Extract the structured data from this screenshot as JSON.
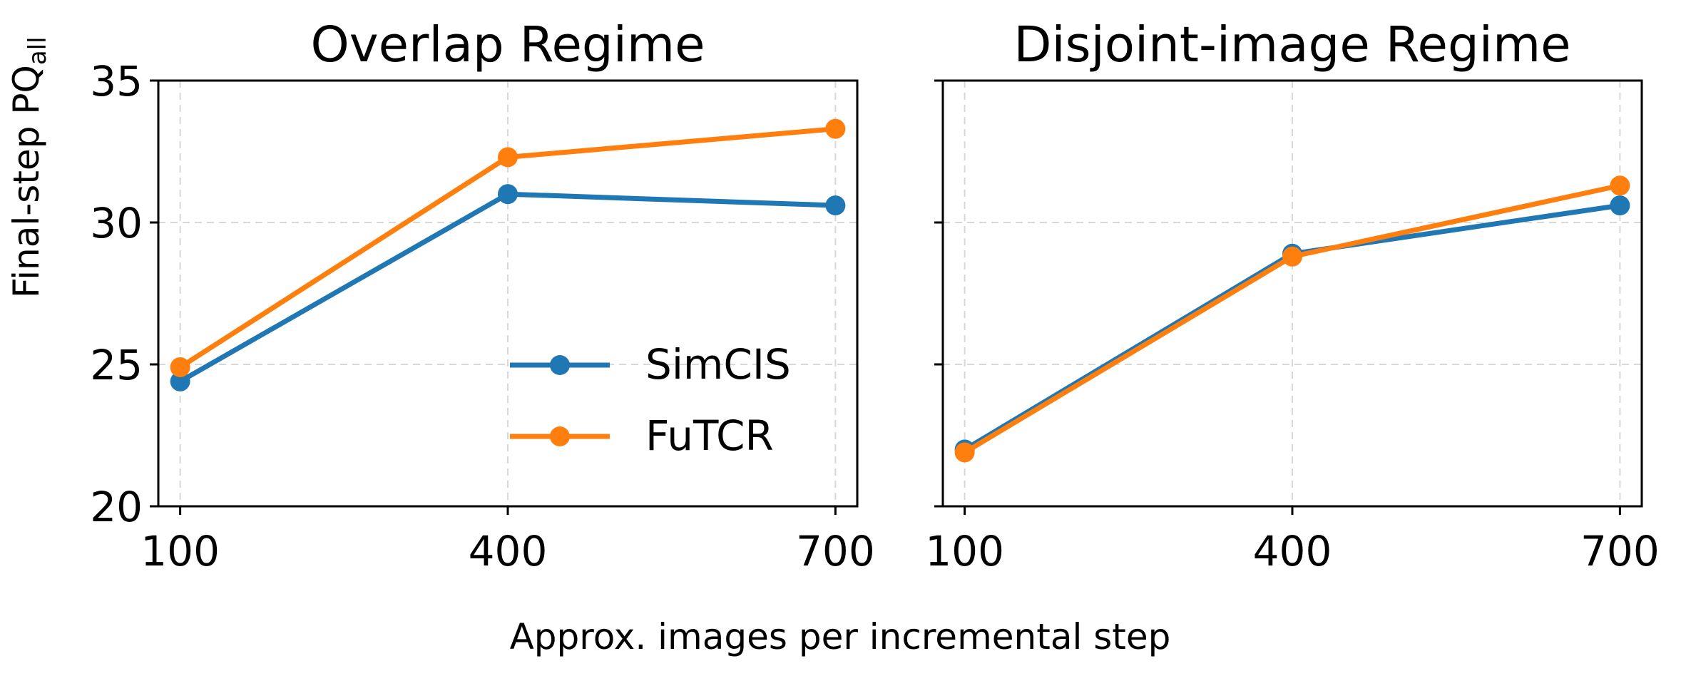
{
  "figure": {
    "shared_ylabel": "Final-step PQ",
    "shared_ylabel_subscript": "all",
    "shared_xlabel": "Approx. images per incremental step"
  },
  "legend": {
    "placement": "lower-right of left panel",
    "entries": [
      {
        "label": "SimCIS",
        "color": "#1f77b4"
      },
      {
        "label": "FuTCR",
        "color": "#ff7f0e"
      }
    ]
  },
  "chart_data": [
    {
      "type": "line",
      "title": "Overlap Regime",
      "x": [
        100,
        400,
        700
      ],
      "x_ticks": [
        "100",
        "400",
        "700"
      ],
      "y_ticks": [
        "20",
        "25",
        "30",
        "35"
      ],
      "xlim": [
        80,
        720
      ],
      "ylim": [
        20,
        35
      ],
      "grid": true,
      "series": [
        {
          "name": "SimCIS",
          "color": "#1f77b4",
          "values": [
            24.4,
            31.0,
            30.6
          ]
        },
        {
          "name": "FuTCR",
          "color": "#ff7f0e",
          "values": [
            24.9,
            32.3,
            33.3
          ]
        }
      ]
    },
    {
      "type": "line",
      "title": "Disjoint-image Regime",
      "x": [
        100,
        400,
        700
      ],
      "x_ticks": [
        "100",
        "400",
        "700"
      ],
      "y_ticks": [],
      "xlim": [
        80,
        720
      ],
      "ylim": [
        20,
        35
      ],
      "grid": true,
      "series": [
        {
          "name": "SimCIS",
          "color": "#1f77b4",
          "values": [
            22.0,
            28.9,
            30.6
          ]
        },
        {
          "name": "FuTCR",
          "color": "#ff7f0e",
          "values": [
            21.9,
            28.8,
            31.3
          ]
        }
      ]
    }
  ]
}
